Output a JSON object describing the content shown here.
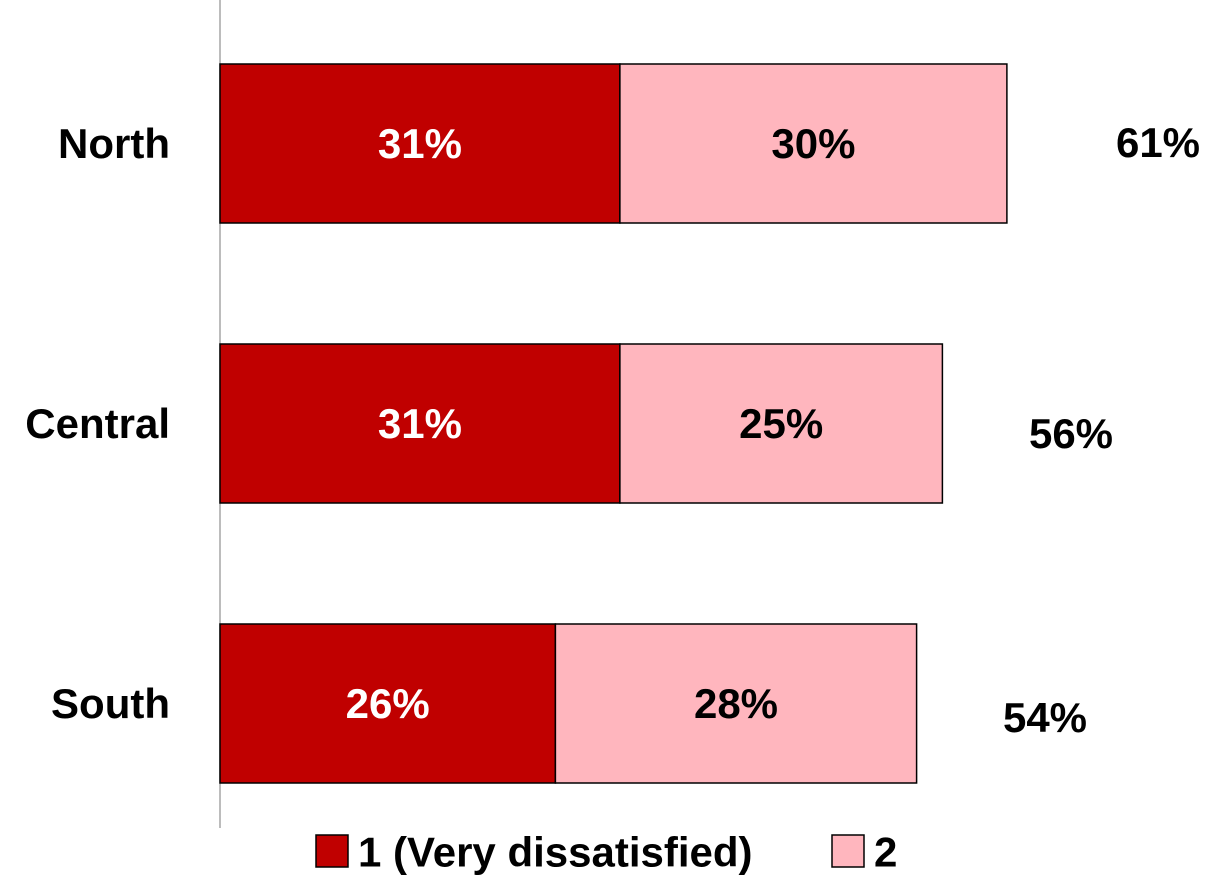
{
  "chart_data": {
    "type": "bar",
    "orientation": "horizontal",
    "stacked": true,
    "title": "",
    "categories": [
      "North",
      "Central",
      "South"
    ],
    "series": [
      {
        "name": "1 (Very dissatisfied)",
        "values": [
          31,
          31,
          26
        ],
        "labels": [
          "31%",
          "31%",
          "26%"
        ],
        "color": "#c00000",
        "label_color": "#ffffff"
      },
      {
        "name": "2",
        "values": [
          30,
          25,
          28
        ],
        "labels": [
          "30%",
          "25%",
          "28%"
        ],
        "color": "#ffb6be",
        "label_color": "#000000"
      }
    ],
    "totals": [
      "61%",
      "56%",
      "54%"
    ],
    "xlim": [
      0,
      61
    ],
    "grid": false,
    "legend": "bottom"
  }
}
